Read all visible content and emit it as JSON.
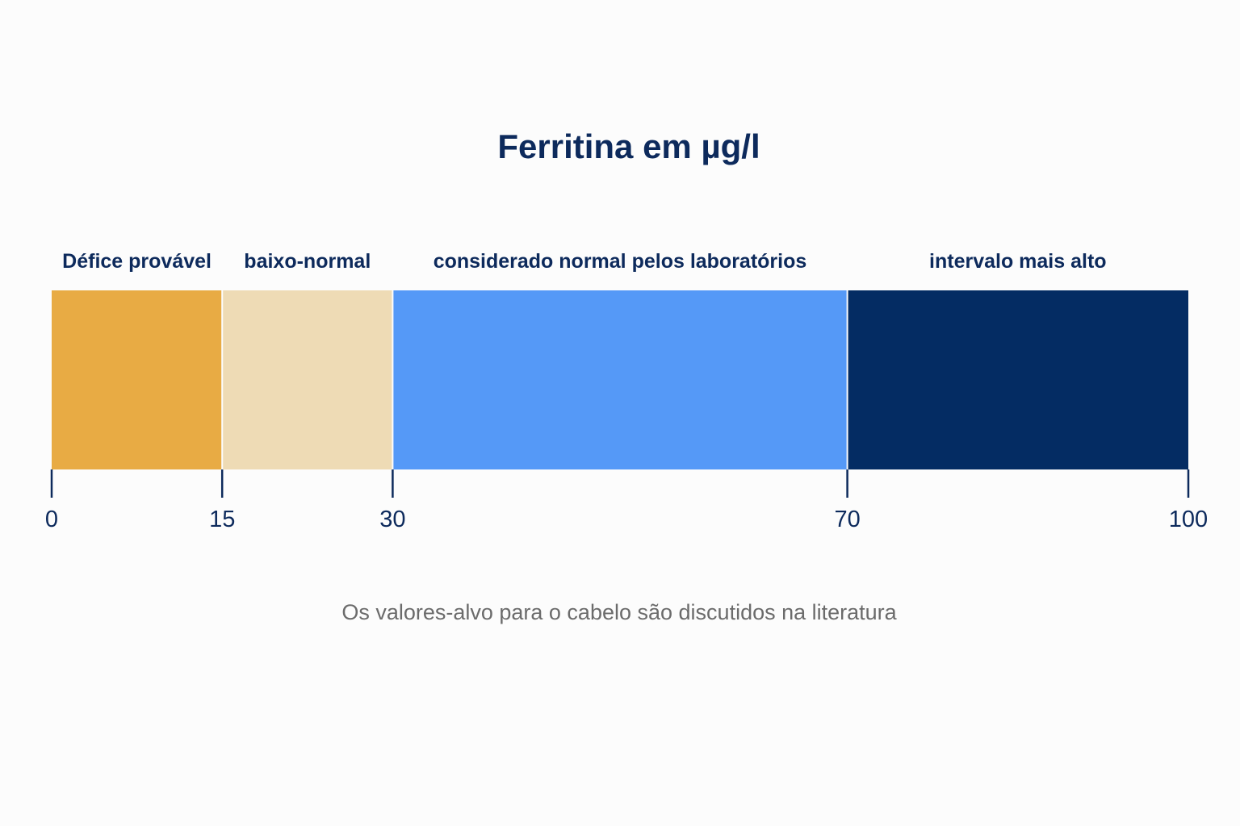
{
  "chart_data": {
    "type": "bar",
    "title": "Ferritina em µg/l",
    "orientation": "horizontal-stacked-ranges",
    "xlim": [
      0,
      100
    ],
    "ticks": [
      0,
      15,
      30,
      70,
      100
    ],
    "tick_labels": [
      "0",
      "15",
      "30",
      "70",
      "100"
    ],
    "bands": [
      {
        "label": "Défice provável",
        "start": 0,
        "end": 15,
        "color": "#e8ab44"
      },
      {
        "label": "baixo-normal",
        "start": 15,
        "end": 30,
        "color": "#eedbb5"
      },
      {
        "label": "considerado normal pelos laboratórios",
        "start": 30,
        "end": 70,
        "color": "#5599f7"
      },
      {
        "label": "intervalo mais alto",
        "start": 70,
        "end": 100,
        "color": "#042c63"
      }
    ],
    "grid": false,
    "legend": "none",
    "note": "Os valores-alvo para o cabelo são discutidos na literatura"
  },
  "colors": {
    "title": "#0d2a5c",
    "axis": "#0d2a5c",
    "note": "#6b6b6b",
    "background": "#fcfcfc"
  }
}
